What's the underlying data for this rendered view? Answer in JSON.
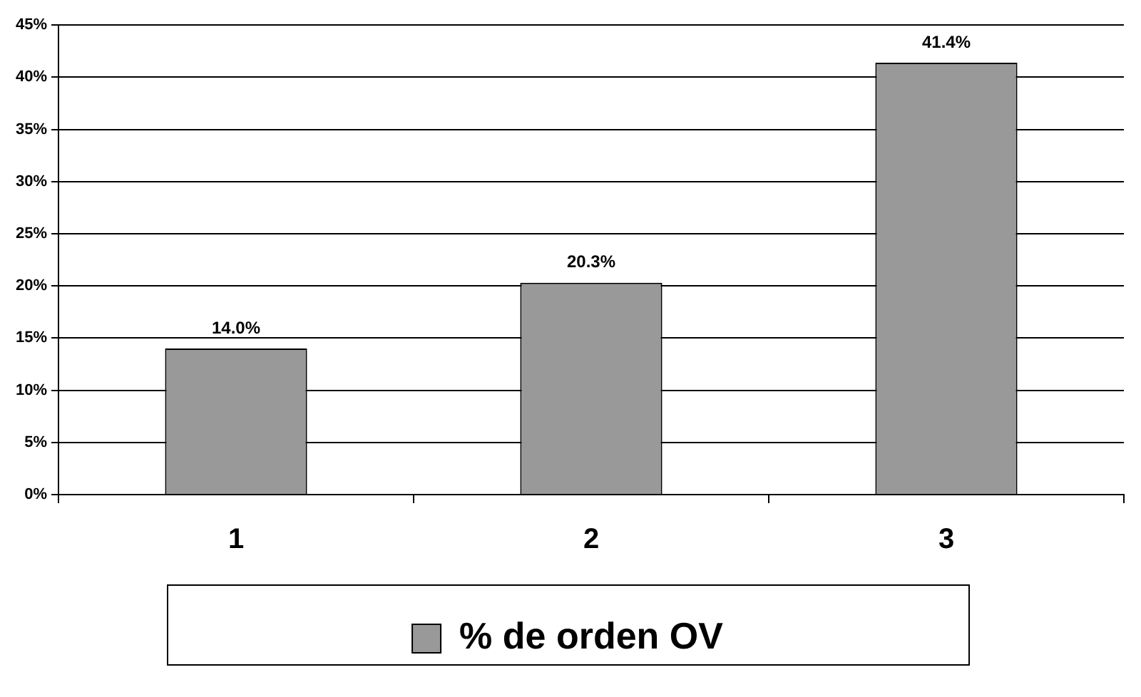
{
  "chart_data": {
    "type": "bar",
    "categories": [
      "1",
      "2",
      "3"
    ],
    "series": [
      {
        "name": "% de orden OV",
        "color": "#999999",
        "values": [
          14.0,
          20.3,
          41.4
        ],
        "value_labels": [
          "14.0%",
          "20.3%",
          "41.4%"
        ]
      }
    ],
    "ylim": [
      0,
      45
    ],
    "yticks": [
      {
        "value": 0,
        "label": "0%"
      },
      {
        "value": 5,
        "label": "5%"
      },
      {
        "value": 10,
        "label": "10%"
      },
      {
        "value": 15,
        "label": "15%"
      },
      {
        "value": 20,
        "label": "20%"
      },
      {
        "value": 25,
        "label": "25%"
      },
      {
        "value": 30,
        "label": "30%"
      },
      {
        "value": 35,
        "label": "35%"
      },
      {
        "value": 40,
        "label": "40%"
      },
      {
        "value": 45,
        "label": "45%"
      }
    ],
    "grid": "y",
    "legend": "bottom"
  }
}
